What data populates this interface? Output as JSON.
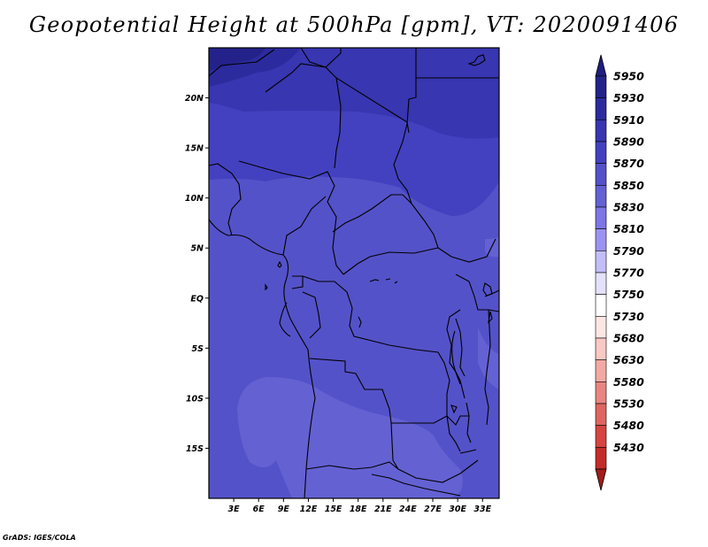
{
  "figure": {
    "title": "Geopotential Height at 500hPa [gpm], VT: 2020091406",
    "credit": "GrADS: IGES/COLA"
  },
  "map": {
    "region_lon": [
      0,
      35
    ],
    "region_lat": [
      -20,
      25
    ],
    "lat_ticks": [
      {
        "value": 20,
        "label": "20N"
      },
      {
        "value": 15,
        "label": "15N"
      },
      {
        "value": 10,
        "label": "10N"
      },
      {
        "value": 5,
        "label": "5N"
      },
      {
        "value": 0,
        "label": "EQ"
      },
      {
        "value": -5,
        "label": "5S"
      },
      {
        "value": -10,
        "label": "10S"
      },
      {
        "value": -15,
        "label": "15S"
      }
    ],
    "lon_ticks": [
      {
        "value": 3,
        "label": "3E"
      },
      {
        "value": 6,
        "label": "6E"
      },
      {
        "value": 9,
        "label": "9E"
      },
      {
        "value": 12,
        "label": "12E"
      },
      {
        "value": 15,
        "label": "15E"
      },
      {
        "value": 18,
        "label": "18E"
      },
      {
        "value": 21,
        "label": "21E"
      },
      {
        "value": 24,
        "label": "24E"
      },
      {
        "value": 27,
        "label": "27E"
      },
      {
        "value": 30,
        "label": "30E"
      },
      {
        "value": 33,
        "label": "33E"
      }
    ]
  },
  "colorbar": {
    "levels": [
      {
        "value": "5950",
        "color": "#23228a"
      },
      {
        "value": "5930",
        "color": "#2c2b9e"
      },
      {
        "value": "5910",
        "color": "#3836b0"
      },
      {
        "value": "5890",
        "color": "#4341bf"
      },
      {
        "value": "5870",
        "color": "#5452c8"
      },
      {
        "value": "5850",
        "color": "#6461d3"
      },
      {
        "value": "5830",
        "color": "#7c76e6"
      },
      {
        "value": "5810",
        "color": "#9b93f2"
      },
      {
        "value": "5790",
        "color": "#c3bef8"
      },
      {
        "value": "5770",
        "color": "#e4e1fb"
      },
      {
        "value": "5750",
        "color": "#ffffff"
      },
      {
        "value": "5730",
        "color": "#fde7e4"
      },
      {
        "value": "5680",
        "color": "#f9c9c4"
      },
      {
        "value": "5630",
        "color": "#f3a9a3"
      },
      {
        "value": "5580",
        "color": "#e98580"
      },
      {
        "value": "5530",
        "color": "#df6560"
      },
      {
        "value": "5480",
        "color": "#d64541"
      },
      {
        "value": "5430",
        "color": "#c42c29"
      },
      {
        "value": "",
        "color": "#a71f1c"
      }
    ],
    "top_arrow_color": "#1e1d80",
    "bottom_arrow_color": "#a11d1a"
  }
}
